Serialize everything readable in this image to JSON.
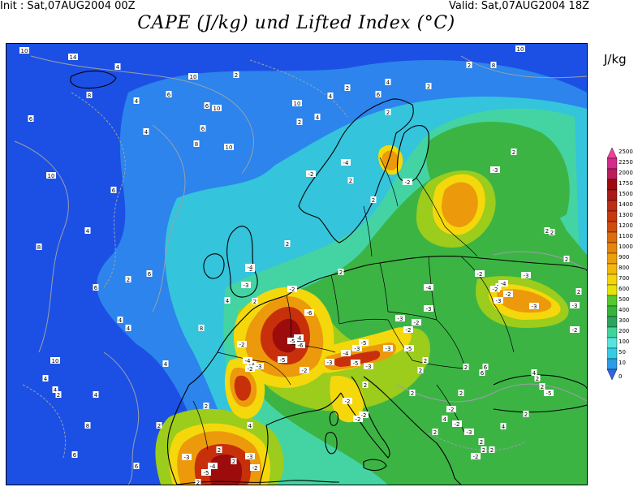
{
  "header": {
    "init": "Init : Sat,07AUG2004 00Z",
    "valid": "Valid: Sat,07AUG2004 18Z",
    "title": "CAPE (J/kg) und Lifted Index (°C)"
  },
  "legend": {
    "unit": "J/kg",
    "levels": [
      "2500",
      "2250",
      "2000",
      "1750",
      "1500",
      "1400",
      "1300",
      "1200",
      "1100",
      "1000",
      "900",
      "800",
      "700",
      "600",
      "500",
      "400",
      "300",
      "200",
      "100",
      "50",
      "10",
      "0"
    ],
    "colors": [
      "#f0409c",
      "#d42b8c",
      "#bc1c5c",
      "#9c0c0c",
      "#ab1a1a",
      "#bd2d14",
      "#c7380c",
      "#d04c0c",
      "#dc6c0c",
      "#e4860c",
      "#ec9e0c",
      "#f4b80c",
      "#f4d40c",
      "#e4e40c",
      "#54c82c",
      "#34b43c",
      "#2ca45c",
      "#40d49c",
      "#58e4dc",
      "#34cce4",
      "#2c9ce8",
      "#3464e4"
    ]
  },
  "map": {
    "colors": {
      "ocean": "#1c50e4",
      "ocean_mid": "#2c84ec",
      "teal": "#34c4dc",
      "mint": "#44d4a4",
      "green": "#3cb444",
      "lime": "#9ccc1c",
      "yellow": "#f4d80c",
      "orange": "#ec9a0c",
      "red": "#c8300c",
      "dark_red": "#9c0c0c",
      "coast": "#000000",
      "contour": "#9aa0aa"
    },
    "li_labels": [
      "10",
      "14",
      "4",
      "6",
      "8",
      "10",
      "2",
      "4",
      "6",
      "10",
      "6",
      "4",
      "6",
      "8",
      "10",
      "2",
      "4",
      "10",
      "4",
      "6",
      "10",
      "8",
      "2",
      "4",
      "2",
      "2",
      "10",
      "6",
      "4",
      "8",
      "6",
      "2",
      "4",
      "8",
      "6",
      "2",
      "-2",
      "2",
      "-4",
      "2",
      "-2",
      "2",
      "2",
      "-3",
      "2",
      "2",
      "2",
      "-3",
      "-2",
      "2",
      "2",
      "-2",
      "-2",
      "4",
      "2",
      "-4",
      "-3",
      "-4",
      "-6",
      "-5",
      "-6",
      "-5",
      "-3",
      "-2",
      "-4",
      "-3",
      "-2",
      "-2",
      "-3",
      "-4",
      "-3",
      "-5",
      "-3",
      "-2",
      "-2",
      "-5",
      "-5",
      "-3",
      "-3",
      "-4",
      "-2",
      "-3",
      "-3",
      "-2",
      "2",
      "2",
      "2",
      "4",
      "6",
      "6",
      "4",
      "2",
      "-2",
      "-3",
      "2",
      "2",
      "4",
      "-5",
      "-3",
      "-2",
      "-4",
      "-3",
      "-2",
      "-2",
      "2",
      "-2",
      "2",
      "2",
      "2",
      "4",
      "2",
      "2",
      "-4",
      "-3",
      "-3",
      "-5",
      "-2",
      "2",
      "4",
      "10",
      "6",
      "4",
      "4",
      "2",
      "8",
      "6",
      "2",
      "2",
      "4",
      "4",
      "2",
      "2",
      "-2",
      "-2",
      "2",
      "2"
    ]
  }
}
